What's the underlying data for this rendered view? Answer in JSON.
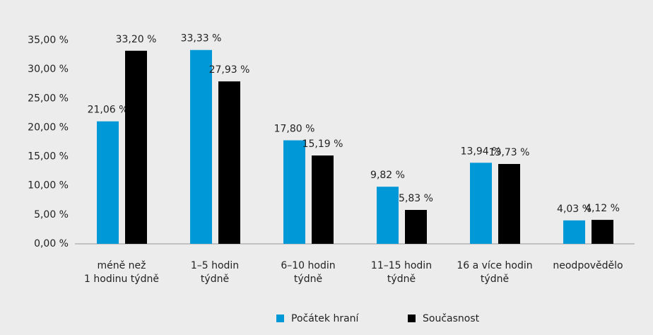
{
  "chart_data": {
    "type": "bar",
    "categories": [
      "méně než\n1 hodinu týdně",
      "1–5 hodin\ntýdně",
      "6–10 hodin\ntýdně",
      "11–15 hodin\ntýdně",
      "16 a více hodin\ntýdně",
      "neodpovědělo"
    ],
    "series": [
      {
        "name": "Počátek hraní",
        "color": "#0098d6",
        "values": [
          21.06,
          33.33,
          17.8,
          9.82,
          13.94,
          4.03
        ],
        "value_labels": [
          "21,06 %",
          "33,33 %",
          "17,80 %",
          "9,82 %",
          "13,94 %",
          "4,03 %"
        ]
      },
      {
        "name": "Současnost",
        "color": "#000000",
        "values": [
          33.2,
          27.93,
          15.19,
          5.83,
          13.73,
          4.12
        ],
        "value_labels": [
          "33,20 %",
          "27,93 %",
          "15,19 %",
          "5,83 %",
          "13,73 %",
          "4,12 %"
        ]
      }
    ],
    "ylim": [
      0,
      35
    ],
    "yticks": [
      {
        "value": 0,
        "label": "0,00 %"
      },
      {
        "value": 5,
        "label": "5,00 %"
      },
      {
        "value": 10,
        "label": "10,00 %"
      },
      {
        "value": 15,
        "label": "15,00 %"
      },
      {
        "value": 20,
        "label": "20,00 %"
      },
      {
        "value": 25,
        "label": "25,00 %"
      },
      {
        "value": 30,
        "label": "30,00 %"
      },
      {
        "value": 35,
        "label": "35,00 %"
      }
    ],
    "grid": false,
    "legend": "bottom"
  }
}
